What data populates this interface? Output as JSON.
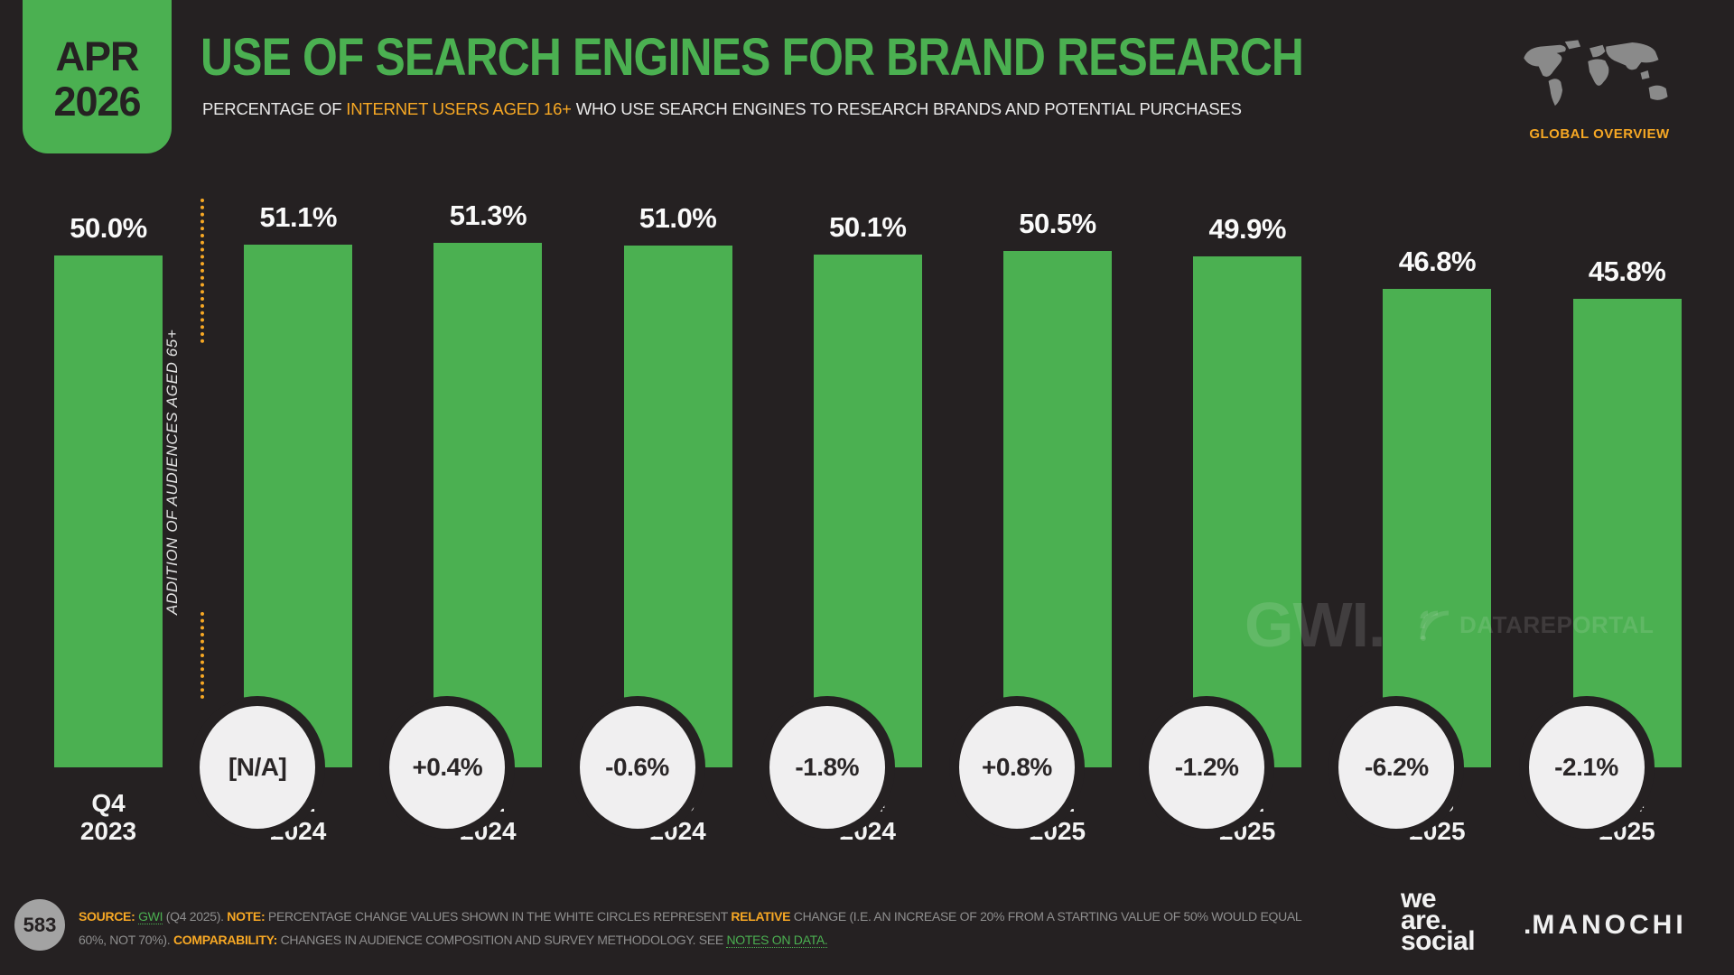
{
  "header": {
    "date_badge": {
      "month": "APR",
      "year": "2026"
    },
    "title": "USE OF SEARCH ENGINES FOR BRAND RESEARCH",
    "subtitle": {
      "prefix": "PERCENTAGE OF ",
      "highlight": "INTERNET USERS AGED 16+",
      "suffix": " WHO USE SEARCH ENGINES TO RESEARCH BRANDS AND POTENTIAL PURCHASES"
    },
    "region_label": "GLOBAL OVERVIEW"
  },
  "chart_data": {
    "type": "bar",
    "title": "USE OF SEARCH ENGINES FOR BRAND RESEARCH",
    "categories": [
      "Q4 2023",
      "Q1 2024",
      "Q2 2024",
      "Q3 2024",
      "Q4 2024",
      "Q1 2025",
      "Q2 2025",
      "Q3 2025",
      "Q4 2025"
    ],
    "values": [
      50.0,
      51.1,
      51.3,
      51.0,
      50.1,
      50.5,
      49.9,
      46.8,
      45.8
    ],
    "value_labels": [
      "50.0%",
      "51.1%",
      "51.3%",
      "51.0%",
      "50.1%",
      "50.5%",
      "49.9%",
      "46.8%",
      "45.8%"
    ],
    "change_labels": [
      "[N/A]",
      "+0.4%",
      "-0.6%",
      "-1.8%",
      "+0.8%",
      "-1.2%",
      "-6.2%",
      "-2.1%"
    ],
    "annotation": "ADDITION OF AUDIENCES AGED 65+",
    "bar_color": "#4bb051",
    "ylabel": "",
    "xlabel": "",
    "ylim": [
      0,
      75
    ],
    "grid": false,
    "legend": false
  },
  "watermarks": {
    "gwi": "GWI.",
    "datareportal": "DATAREPORTAL"
  },
  "footer": {
    "page_number": "583",
    "note_lines": [
      [
        {
          "text": "SOURCE: ",
          "style": "orange"
        },
        {
          "text": "GWI",
          "style": "green"
        },
        {
          "text": " (Q4 2025). ",
          "style": "plain"
        },
        {
          "text": "NOTE: ",
          "style": "orange"
        },
        {
          "text": "PERCENTAGE CHANGE VALUES SHOWN IN THE WHITE CIRCLES REPRESENT ",
          "style": "plain"
        },
        {
          "text": "RELATIVE",
          "style": "orange"
        },
        {
          "text": " CHANGE (I.E. AN INCREASE OF 20% FROM A STARTING VALUE OF 50% WOULD EQUAL",
          "style": "plain"
        }
      ],
      [
        {
          "text": "60%, NOT 70%). ",
          "style": "plain"
        },
        {
          "text": "COMPARABILITY: ",
          "style": "orange"
        },
        {
          "text": "CHANGES IN AUDIENCE COMPOSITION AND SURVEY METHODOLOGY. SEE ",
          "style": "plain"
        },
        {
          "text": "NOTES ON DATA.",
          "style": "green"
        }
      ]
    ],
    "brand_social_lines": [
      "we",
      "are.",
      "social"
    ],
    "brand_manochi": "MANOCHI"
  },
  "colors": {
    "background": "#252122",
    "green": "#4bb051",
    "orange": "#f7a824",
    "circle_fill": "#f0eff0",
    "footer_text": "#8e8e8e"
  }
}
